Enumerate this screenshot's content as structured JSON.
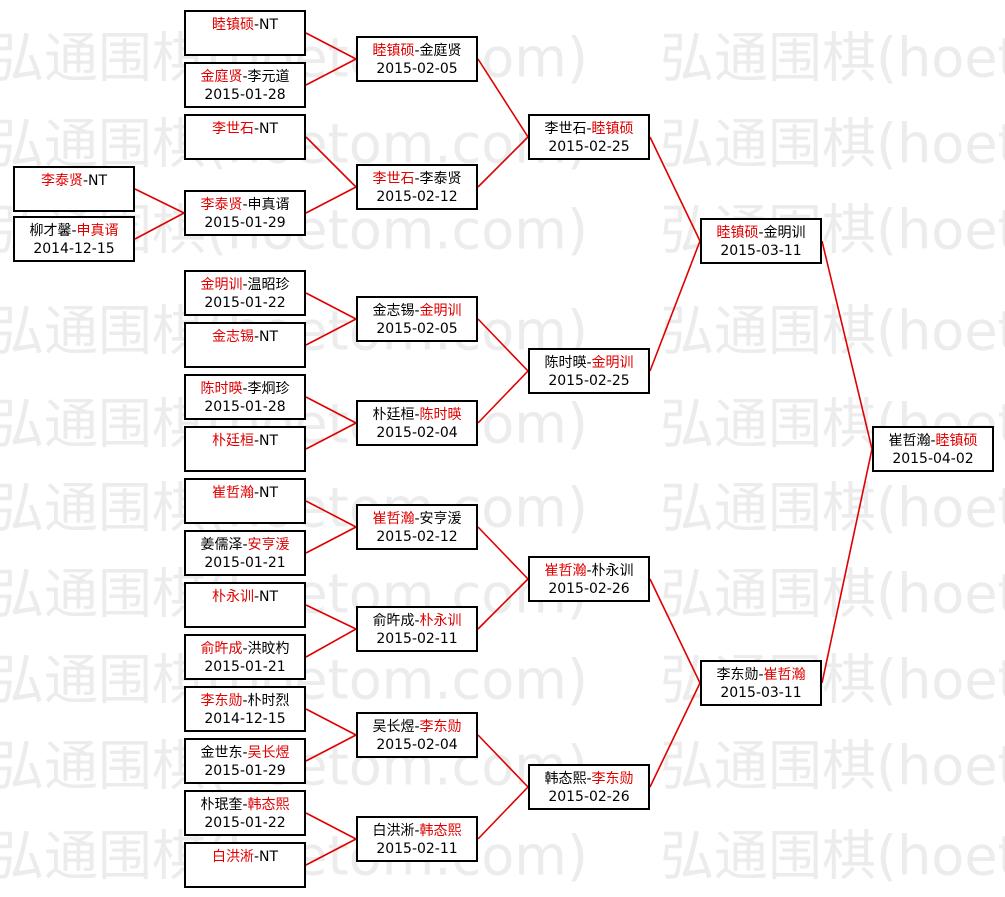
{
  "watermark": "弘通围棋(hoetom.com)",
  "separator": "-",
  "rounds": [
    [
      {
        "players": [
          "李泰贤",
          "NT"
        ],
        "winner": 0
      },
      {
        "players": [
          "柳才馨",
          "申真谞"
        ],
        "winner": 1,
        "date": "2014-12-15"
      }
    ],
    [
      {
        "players": [
          "睦镇硕",
          "NT"
        ],
        "winner": 0
      },
      {
        "players": [
          "金庭贤",
          "李元道"
        ],
        "winner": 0,
        "date": "2015-01-28"
      },
      {
        "players": [
          "李世石",
          "NT"
        ],
        "winner": 0
      },
      {
        "players": [
          "李泰贤",
          "申真谞"
        ],
        "winner": 0,
        "date": "2015-01-29"
      },
      {
        "players": [
          "金明训",
          "温昭珍"
        ],
        "winner": 0,
        "date": "2015-01-22"
      },
      {
        "players": [
          "金志锡",
          "NT"
        ],
        "winner": 0
      },
      {
        "players": [
          "陈时暎",
          "李炯珍"
        ],
        "winner": 0,
        "date": "2015-01-28"
      },
      {
        "players": [
          "朴廷桓",
          "NT"
        ],
        "winner": 0
      },
      {
        "players": [
          "崔哲瀚",
          "NT"
        ],
        "winner": 0
      },
      {
        "players": [
          "姜儒泽",
          "安亨湲"
        ],
        "winner": 1,
        "date": "2015-01-21"
      },
      {
        "players": [
          "朴永训",
          "NT"
        ],
        "winner": 0
      },
      {
        "players": [
          "俞旿成",
          "洪旼杓"
        ],
        "winner": 0,
        "date": "2015-01-21"
      },
      {
        "players": [
          "李东勋",
          "朴时烈"
        ],
        "winner": 0,
        "date": "2014-12-15"
      },
      {
        "players": [
          "金世东",
          "吴长煜"
        ],
        "winner": 1,
        "date": "2015-01-29"
      },
      {
        "players": [
          "朴珉奎",
          "韩态熙"
        ],
        "winner": 1,
        "date": "2015-01-22"
      },
      {
        "players": [
          "白洪淅",
          "NT"
        ],
        "winner": 0
      }
    ],
    [
      {
        "players": [
          "睦镇硕",
          "金庭贤"
        ],
        "winner": 0,
        "date": "2015-02-05"
      },
      {
        "players": [
          "李世石",
          "李泰贤"
        ],
        "winner": 0,
        "date": "2015-02-12"
      },
      {
        "players": [
          "金志锡",
          "金明训"
        ],
        "winner": 1,
        "date": "2015-02-05"
      },
      {
        "players": [
          "朴廷桓",
          "陈时暎"
        ],
        "winner": 1,
        "date": "2015-02-04"
      },
      {
        "players": [
          "崔哲瀚",
          "安亨湲"
        ],
        "winner": 0,
        "date": "2015-02-12"
      },
      {
        "players": [
          "俞旿成",
          "朴永训"
        ],
        "winner": 1,
        "date": "2015-02-11"
      },
      {
        "players": [
          "吴长煜",
          "李东勋"
        ],
        "winner": 1,
        "date": "2015-02-04"
      },
      {
        "players": [
          "白洪淅",
          "韩态熙"
        ],
        "winner": 1,
        "date": "2015-02-11"
      }
    ],
    [
      {
        "players": [
          "李世石",
          "睦镇硕"
        ],
        "winner": 1,
        "date": "2015-02-25"
      },
      {
        "players": [
          "陈时暎",
          "金明训"
        ],
        "winner": 1,
        "date": "2015-02-25"
      },
      {
        "players": [
          "崔哲瀚",
          "朴永训"
        ],
        "winner": 0,
        "date": "2015-02-26"
      },
      {
        "players": [
          "韩态熙",
          "李东勋"
        ],
        "winner": 1,
        "date": "2015-02-26"
      }
    ],
    [
      {
        "players": [
          "睦镇硕",
          "金明训"
        ],
        "winner": 0,
        "date": "2015-03-11"
      },
      {
        "players": [
          "李东勋",
          "崔哲瀚"
        ],
        "winner": 1,
        "date": "2015-03-11"
      }
    ],
    [
      {
        "players": [
          "崔哲瀚",
          "睦镇硕"
        ],
        "winner": 1,
        "date": "2015-04-02"
      }
    ]
  ]
}
